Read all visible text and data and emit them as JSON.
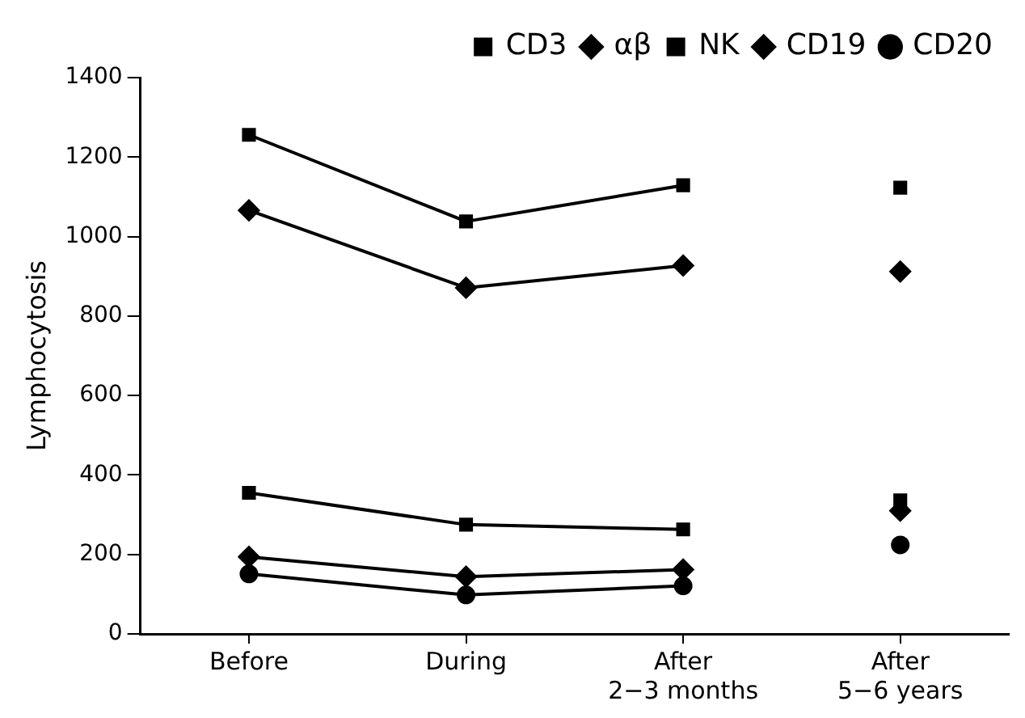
{
  "chart_data": {
    "type": "line",
    "ylabel": "Lymphocytosis",
    "categories": [
      "Before",
      "During",
      "After 2−3 months",
      "After 5−6 years"
    ],
    "ylim": [
      0,
      1400
    ],
    "yticks": [
      0,
      200,
      400,
      600,
      800,
      1000,
      1200,
      1400
    ],
    "grid": false,
    "legend": "top right",
    "series": [
      {
        "name": "CD3",
        "color": "#000000",
        "marker": "square",
        "values": [
          1256,
          1038,
          1129,
          null
        ]
      },
      {
        "name": "αβ",
        "color": "#000000",
        "marker": "diamond",
        "values": [
          1066,
          871,
          927,
          null
        ]
      },
      {
        "name": "NK",
        "color": "#000000",
        "marker": "square",
        "values": [
          355,
          275,
          263,
          null
        ]
      },
      {
        "name": "CD19",
        "color": "#000000",
        "marker": "diamond",
        "values": [
          194,
          144,
          162,
          null
        ]
      },
      {
        "name": "CD20",
        "color": "#000000",
        "marker": "circle",
        "values": [
          151,
          98,
          121,
          null
        ]
      },
      {
        "type": "scatter",
        "color": "#000000",
        "marker": "square",
        "x": [
          "After 5−6 years"
        ],
        "values": [
          1123
        ]
      },
      {
        "type": "scatter",
        "color": "#000000",
        "marker": "diamond",
        "x": [
          "After 5−6 years"
        ],
        "values": [
          912
        ]
      },
      {
        "type": "scatter",
        "color": "#000000",
        "marker": "square",
        "x": [
          "After 5−6 years"
        ],
        "values": [
          336
        ]
      },
      {
        "type": "scatter",
        "color": "#000000",
        "marker": "diamond",
        "x": [
          "After 5−6 years"
        ],
        "values": [
          310
        ]
      },
      {
        "type": "scatter",
        "color": "#000000",
        "marker": "circle",
        "x": [
          "After 5−6 years"
        ],
        "values": [
          224
        ]
      }
    ]
  }
}
